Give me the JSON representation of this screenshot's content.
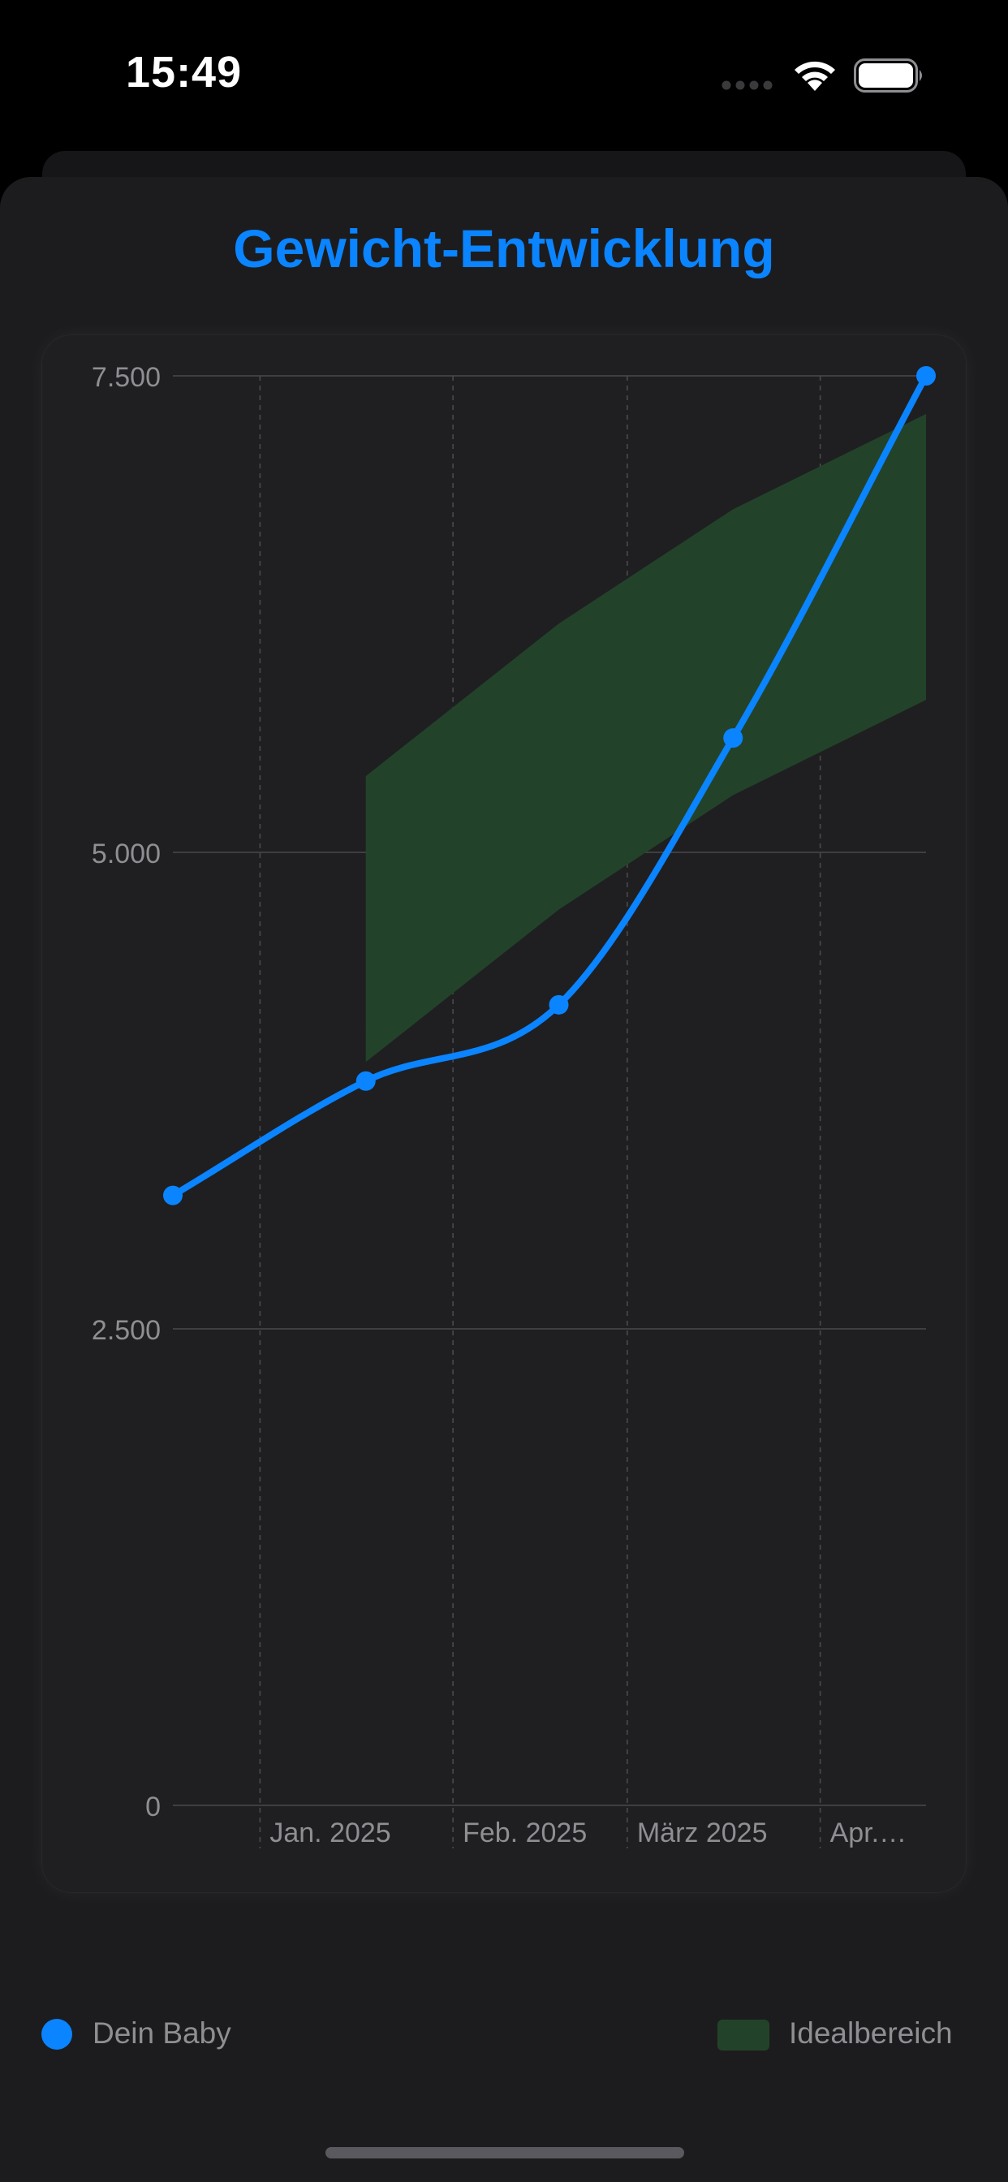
{
  "status_bar": {
    "time": "15:49",
    "icons": [
      "signal-dots-icon",
      "wifi-icon",
      "battery-icon"
    ]
  },
  "sheet": {
    "title": "Gewicht-Entwicklung"
  },
  "colors": {
    "accent": "#0a84ff",
    "ideal_band": "#22432a",
    "background": "#1c1c1e",
    "grid": "#4a4a4e",
    "axis_text": "#8e8e93"
  },
  "chart_data": {
    "type": "line",
    "title": "Gewicht-Entwicklung",
    "xlabel": "",
    "ylabel": "",
    "ylim": [
      0,
      7500
    ],
    "y_ticks": [
      0,
      2500,
      5000,
      7500
    ],
    "y_tick_labels": [
      "0",
      "2.500",
      "5.000",
      "7.500"
    ],
    "x_ticks": [
      {
        "label": "Jan. 2025",
        "date": "2025-01-01"
      },
      {
        "label": "Feb. 2025",
        "date": "2025-02-01"
      },
      {
        "label": "März 2025",
        "date": "2025-03-01"
      },
      {
        "label": "Apr.…",
        "date": "2025-04-01"
      }
    ],
    "grid": true,
    "legend_placement": "bottom",
    "series": [
      {
        "name": "Dein Baby",
        "type": "line",
        "points": [
          {
            "x": "2024-12-18",
            "y": 3200
          },
          {
            "x": "2025-01-18",
            "y": 3800
          },
          {
            "x": "2025-02-18",
            "y": 4200
          },
          {
            "x": "2025-03-18",
            "y": 5600
          },
          {
            "x": "2025-04-18",
            "y": 7500
          }
        ]
      },
      {
        "name": "Idealbereich",
        "type": "area",
        "points": [
          {
            "x": "2025-01-18",
            "low": 3900,
            "high": 5400
          },
          {
            "x": "2025-02-18",
            "low": 4700,
            "high": 6200
          },
          {
            "x": "2025-03-18",
            "low": 5300,
            "high": 6800
          },
          {
            "x": "2025-04-18",
            "low": 5800,
            "high": 7300
          }
        ]
      }
    ]
  },
  "legend": {
    "baby_label": "Dein Baby",
    "ideal_label": "Idealbereich"
  }
}
